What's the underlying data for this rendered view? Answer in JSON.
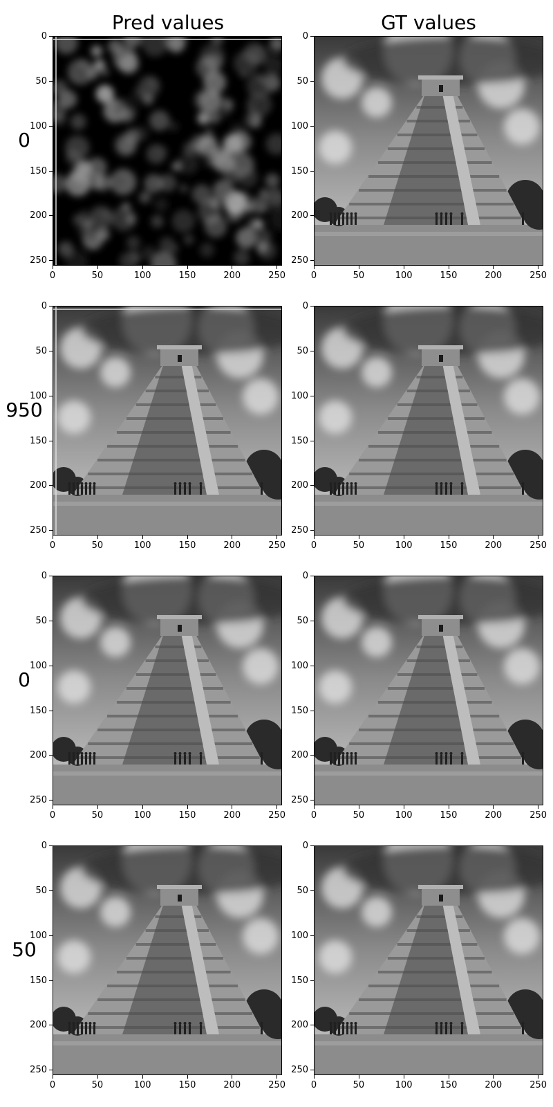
{
  "column_titles": [
    "Pred values",
    "GT values"
  ],
  "rows": [
    {
      "label": "0",
      "pred_style": "noise",
      "gt_style": "pyramid"
    },
    {
      "label": "950",
      "pred_style": "pyramid-gridline",
      "gt_style": "pyramid"
    },
    {
      "label": "0",
      "pred_style": "pyramid",
      "gt_style": "pyramid"
    },
    {
      "label": "50",
      "pred_style": "pyramid",
      "gt_style": "pyramid"
    }
  ],
  "axis": {
    "x_ticks": [
      "0",
      "50",
      "100",
      "150",
      "200",
      "250"
    ],
    "y_ticks": [
      "0",
      "50",
      "100",
      "150",
      "200",
      "250"
    ],
    "x_tick_values": [
      0,
      50,
      100,
      150,
      200,
      250
    ],
    "y_tick_values": [
      0,
      50,
      100,
      150,
      200,
      250
    ],
    "range": [
      0,
      256
    ]
  },
  "colors": {
    "sky_dark": "#3a3a3a",
    "sky_light": "#cfcfcf",
    "stone": "#9a9a9a",
    "stone_dark": "#4a4a4a",
    "ground": "#8c8c8c",
    "trees": "#2a2a2a",
    "noise_bg": "#000000"
  }
}
